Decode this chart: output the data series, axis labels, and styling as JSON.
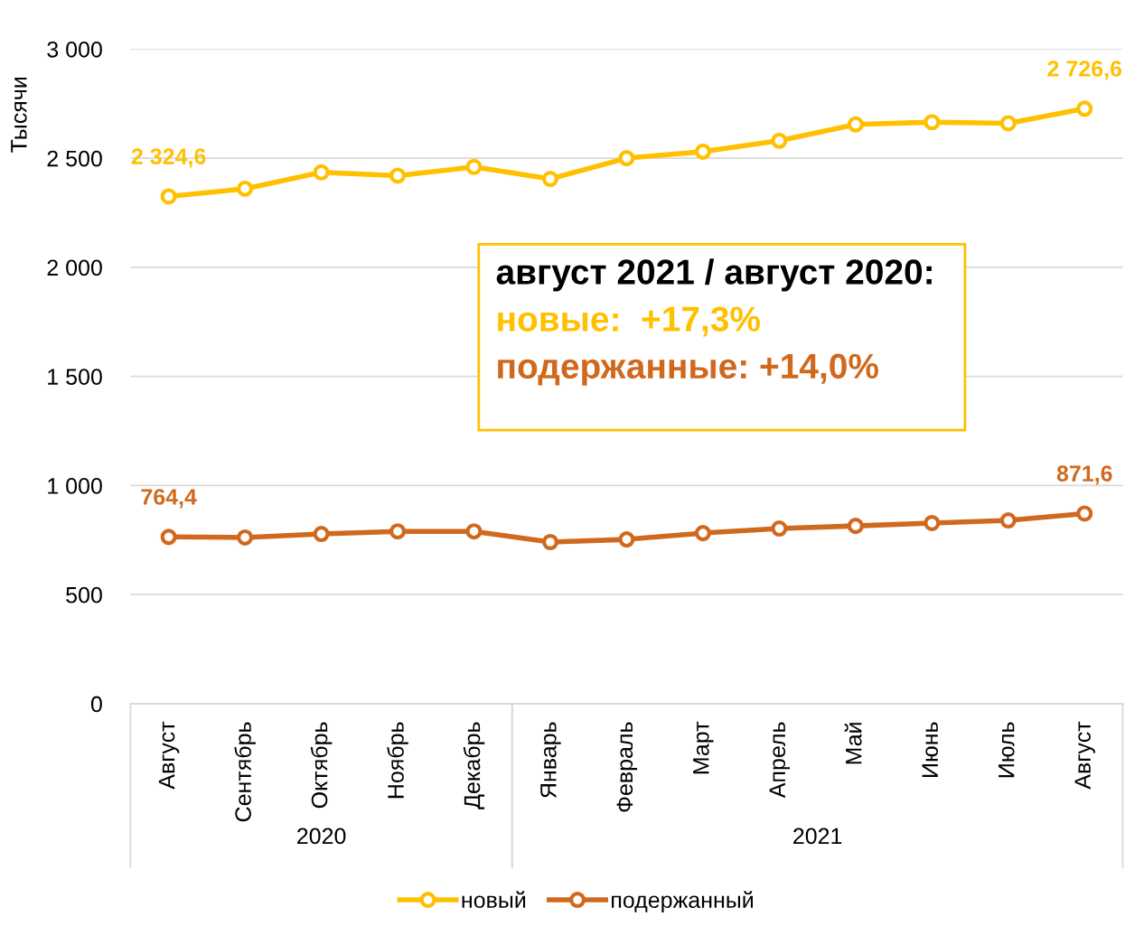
{
  "chart_data": {
    "type": "line",
    "ylabel": "Тысячи",
    "categories": [
      "Август",
      "Сентябрь",
      "Октябрь",
      "Ноябрь",
      "Декабрь",
      "Январь",
      "Февраль",
      "Март",
      "Апрель",
      "Май",
      "Июнь",
      "Июль",
      "Август"
    ],
    "series": [
      {
        "name": "новый",
        "color": "#ffc000",
        "values": [
          2324.6,
          2360,
          2435,
          2420,
          2460,
          2405,
          2500,
          2530,
          2580,
          2655,
          2665,
          2660,
          2726.6
        ],
        "value_labels": [
          "2 324,6",
          null,
          null,
          null,
          null,
          null,
          null,
          null,
          null,
          null,
          null,
          null,
          "2 726,6"
        ]
      },
      {
        "name": "подержанный",
        "color": "#d0691e",
        "values": [
          764.4,
          762,
          778,
          790,
          790,
          741,
          753,
          782,
          803,
          815,
          828,
          840,
          871.6
        ],
        "value_labels": [
          "764,4",
          null,
          null,
          null,
          null,
          null,
          null,
          null,
          null,
          null,
          null,
          null,
          "871,6"
        ]
      }
    ],
    "ylim": [
      0,
      3000
    ],
    "yticks": [
      {
        "value": 0,
        "label": "0"
      },
      {
        "value": 500,
        "label": "500"
      },
      {
        "value": 1000,
        "label": "1 000"
      },
      {
        "value": 1500,
        "label": "1 500"
      },
      {
        "value": 2000,
        "label": "2 000"
      },
      {
        "value": 2500,
        "label": "2 500"
      },
      {
        "value": 3000,
        "label": "3 000"
      }
    ],
    "grid": "y",
    "legend": "bottom",
    "marker": "circle",
    "line_style": "solid",
    "annotations": [
      "август 2021 / август 2020:",
      "новые:  +17,3%",
      "подержанные: +14,0%",
      "2020",
      "2021"
    ]
  }
}
